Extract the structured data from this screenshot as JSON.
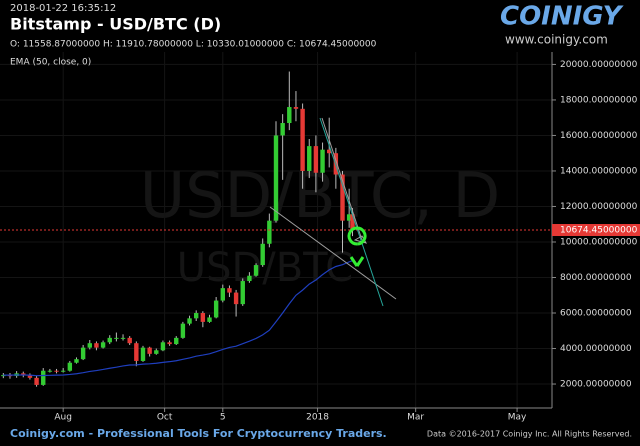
{
  "chart_data": {
    "type": "candlestick",
    "timestamp": "2018-01-22 16:35:12",
    "title": "Bitstamp - USD/BTC (D)",
    "ohlc_line": "O: 11558.87000000 H: 11910.78000000 L: 10330.01000000 C: 10674.45000000",
    "indicator": "EMA (50, close, 0)",
    "watermark": "USD/BTC, D",
    "watermark_small": "USD/BTC",
    "logo": "COINIGY",
    "logo_url": "www.coinigy.com",
    "footer_left": "Coinigy.com - Professional Tools For Cryptocurrency Traders.",
    "footer_right": "Data ©2016-2017 Coinigy Inc. All Rights Reserved.",
    "up_color": "#33cc33",
    "down_color": "#e53935",
    "ema_color": "#1f3fbf",
    "x": [
      "2017-06-26",
      "2017-06-30",
      "2017-07-04",
      "2017-07-08",
      "2017-07-12",
      "2017-07-16",
      "2017-07-20",
      "2017-07-24",
      "2017-07-28",
      "2017-08-01",
      "2017-08-05",
      "2017-08-09",
      "2017-08-13",
      "2017-08-17",
      "2017-08-21",
      "2017-08-25",
      "2017-08-29",
      "2017-09-02",
      "2017-09-06",
      "2017-09-10",
      "2017-09-14",
      "2017-09-18",
      "2017-09-22",
      "2017-09-26",
      "2017-09-30",
      "2017-10-04",
      "2017-10-08",
      "2017-10-12",
      "2017-10-16",
      "2017-10-20",
      "2017-10-24",
      "2017-10-28",
      "2017-11-01",
      "2017-11-05",
      "2017-11-09",
      "2017-11-13",
      "2017-11-17",
      "2017-11-21",
      "2017-11-25",
      "2017-11-29",
      "2017-12-03",
      "2017-12-07",
      "2017-12-11",
      "2017-12-15",
      "2017-12-19",
      "2017-12-23",
      "2017-12-27",
      "2017-12-31",
      "2018-01-04",
      "2018-01-08",
      "2018-01-12",
      "2018-01-16",
      "2018-01-20",
      "2018-01-22"
    ],
    "open": [
      2450,
      2500,
      2450,
      2600,
      2500,
      2350,
      1950,
      2750,
      2750,
      2700,
      2750,
      3200,
      3400,
      4050,
      4300,
      4050,
      4350,
      4600,
      4600,
      4600,
      4300,
      3300,
      4050,
      3700,
      3900,
      4350,
      4250,
      4600,
      5400,
      5700,
      6000,
      5500,
      5750,
      6700,
      7400,
      7150,
      6500,
      7800,
      8100,
      8700,
      9900,
      11200,
      16000,
      16700,
      17600,
      17500,
      14000,
      15400,
      13900,
      15200,
      15000,
      13800,
      11200,
      11558.87
    ],
    "high": [
      2620,
      2620,
      2730,
      2700,
      2600,
      2450,
      2900,
      2850,
      2850,
      2900,
      3300,
      3500,
      4200,
      4480,
      4400,
      4450,
      4750,
      4900,
      4800,
      4700,
      4400,
      4150,
      4100,
      4000,
      4450,
      4450,
      4700,
      5500,
      5850,
      6150,
      6100,
      5900,
      6900,
      7600,
      7550,
      7300,
      7950,
      8300,
      8800,
      10200,
      11600,
      16800,
      17200,
      19600,
      18500,
      17800,
      15800,
      16000,
      15600,
      17000,
      15300,
      14000,
      13000,
      11910.78
    ],
    "low": [
      2330,
      2300,
      2350,
      2380,
      2250,
      1850,
      1900,
      2650,
      2600,
      2650,
      2700,
      3150,
      3350,
      3950,
      3900,
      4000,
      4250,
      4400,
      4450,
      4200,
      3000,
      3250,
      3550,
      3650,
      3850,
      4150,
      4200,
      4550,
      5300,
      5550,
      5200,
      5450,
      5700,
      6600,
      6900,
      5800,
      6400,
      7700,
      8050,
      8600,
      9700,
      11100,
      13500,
      16300,
      16800,
      13000,
      13600,
      12800,
      13400,
      14200,
      13000,
      9400,
      10800,
      10330.01
    ],
    "close": [
      2500,
      2450,
      2600,
      2500,
      2350,
      1950,
      2750,
      2750,
      2700,
      2750,
      3200,
      3400,
      4050,
      4300,
      4050,
      4350,
      4600,
      4600,
      4600,
      4300,
      3300,
      4050,
      3700,
      3900,
      4350,
      4250,
      4600,
      5400,
      5700,
      6000,
      5500,
      5750,
      6700,
      7400,
      7150,
      6500,
      7800,
      8100,
      8700,
      9900,
      11200,
      16000,
      16700,
      17600,
      17500,
      14000,
      15400,
      13900,
      15200,
      15000,
      13800,
      11200,
      11558.87,
      10674.45
    ],
    "ema": [
      2500,
      2500,
      2510,
      2510,
      2500,
      2470,
      2480,
      2490,
      2500,
      2510,
      2540,
      2580,
      2640,
      2710,
      2760,
      2820,
      2890,
      2950,
      3020,
      3070,
      3080,
      3120,
      3140,
      3170,
      3220,
      3260,
      3310,
      3390,
      3470,
      3570,
      3630,
      3700,
      3820,
      3950,
      4060,
      4130,
      4270,
      4410,
      4570,
      4770,
      5030,
      5510,
      6000,
      6520,
      7000,
      7290,
      7630,
      7860,
      8160,
      8430,
      8620,
      8720,
      8880,
      8950
    ],
    "last_price": {
      "value": 10674.45,
      "label": "10674.45000000"
    },
    "xlim": [
      "2017-06-24",
      "2018-05-22"
    ],
    "xticks": [
      {
        "value": "2017-08-01",
        "label": "Aug"
      },
      {
        "value": "2017-10-01",
        "label": "Oct"
      },
      {
        "value": "2017-11-05",
        "label": "5"
      },
      {
        "value": "2018-01-01",
        "label": "2018"
      },
      {
        "value": "2018-03-01",
        "label": "Mar"
      },
      {
        "value": "2018-05-01",
        "label": "May"
      }
    ],
    "ylim": [
      650,
      20700
    ],
    "yticks": [
      {
        "value": 2000,
        "label": "2000.00000000"
      },
      {
        "value": 4000,
        "label": "4000.00000000"
      },
      {
        "value": 6000,
        "label": "6000.00000000"
      },
      {
        "value": 8000,
        "label": "8000.00000000"
      },
      {
        "value": 10000,
        "label": "10000.00000000"
      },
      {
        "value": 12000,
        "label": "12000.00000000"
      },
      {
        "value": 14000,
        "label": "14000.00000000"
      },
      {
        "value": 16000,
        "label": "16000.00000000"
      },
      {
        "value": 18000,
        "label": "18000.00000000"
      },
      {
        "value": 20000,
        "label": "20000.00000000"
      }
    ]
  }
}
